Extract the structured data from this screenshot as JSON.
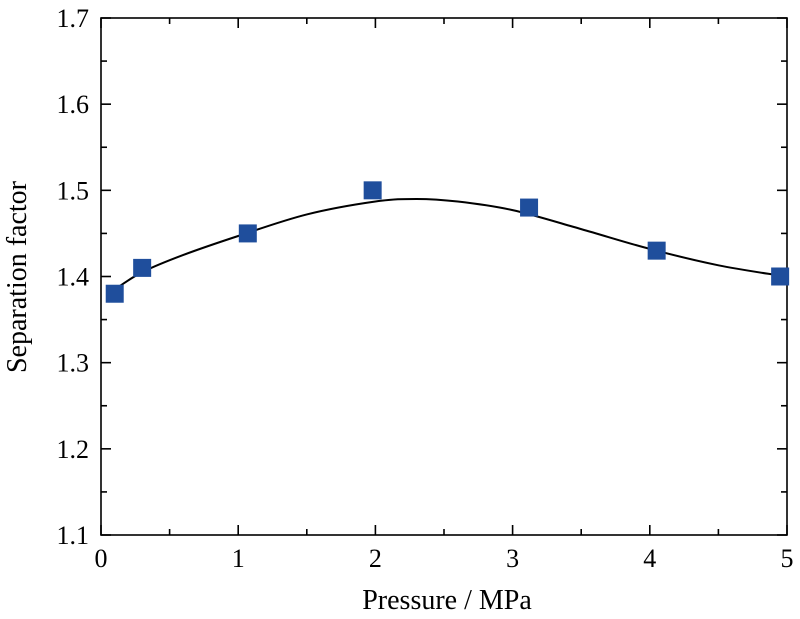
{
  "chart_data": {
    "type": "scatter",
    "xlabel": "Pressure / MPa",
    "ylabel": "Separation factor",
    "xlim": [
      0,
      5
    ],
    "ylim": [
      1.1,
      1.7
    ],
    "x_ticks": [
      "0",
      "1",
      "2",
      "3",
      "4",
      "5"
    ],
    "y_ticks": [
      "1.1",
      "1.2",
      "1.3",
      "1.4",
      "1.5",
      "1.6",
      "1.7"
    ],
    "grid": false,
    "series": [
      {
        "x": [
          0.1,
          0.3,
          1.07,
          1.98,
          3.12,
          4.05,
          4.95
        ],
        "y": [
          1.38,
          1.41,
          1.45,
          1.5,
          1.48,
          1.43,
          1.4
        ],
        "marker": "square",
        "color": "#1f4e9c"
      }
    ],
    "fit_curve": {
      "x": [
        0.1,
        0.3,
        0.6,
        1.0,
        1.5,
        2.0,
        2.3,
        2.6,
        3.0,
        3.5,
        4.0,
        4.5,
        4.95
      ],
      "y": [
        1.385,
        1.405,
        1.425,
        1.447,
        1.472,
        1.487,
        1.49,
        1.487,
        1.477,
        1.455,
        1.432,
        1.413,
        1.401
      ],
      "color": "#000000"
    }
  }
}
